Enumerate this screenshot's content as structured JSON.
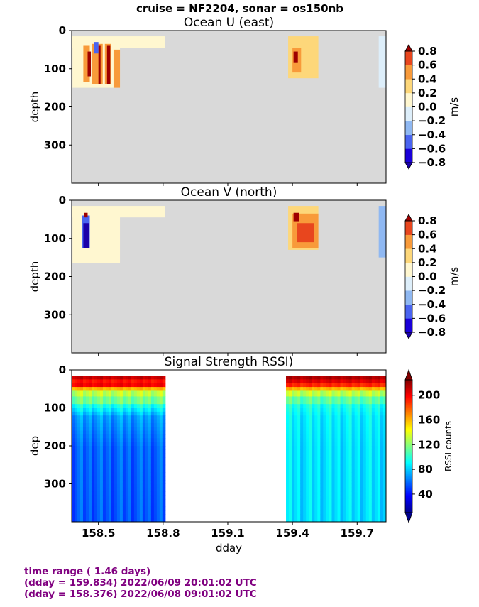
{
  "suptitle": "cruise = NF2204,  sonar = os150nb",
  "footer": {
    "line1": "time range ( 1.46 days)",
    "line2": "(dday = 159.834) 2022/06/09 20:01:02 UTC",
    "line3": "(dday = 158.376) 2022/06/08 09:01:02 UTC"
  },
  "chart_data": [
    {
      "type": "heatmap",
      "title": "Ocean U (east)",
      "xlabel": "",
      "ylabel": "depth",
      "xlim": [
        158.376,
        159.834
      ],
      "ylim": [
        400,
        0
      ],
      "xticks": [
        158.5,
        158.8,
        159.1,
        159.4,
        159.7
      ],
      "yticks": [
        0,
        100,
        200,
        300
      ],
      "ytick_labels": [
        "0",
        "100",
        "200",
        "300"
      ],
      "colorbar": {
        "label": "m/s",
        "ticks": [
          "0.8",
          "0.6",
          "0.4",
          "0.2",
          "0.0",
          "−0.2",
          "−0.4",
          "−0.6",
          "−0.8"
        ],
        "range": [
          -0.8,
          0.8
        ]
      },
      "background": "#d9d9d9",
      "segments": [
        {
          "x": [
            158.376,
            158.81
          ],
          "depth": [
            15,
            45
          ],
          "value": 0.05
        },
        {
          "x": [
            158.38,
            158.6
          ],
          "depth": [
            20,
            150
          ],
          "value": 0.15
        },
        {
          "x": [
            158.43,
            158.46
          ],
          "depth": [
            40,
            135
          ],
          "value": 0.55
        },
        {
          "x": [
            158.47,
            158.52
          ],
          "depth": [
            35,
            140
          ],
          "value": 0.5
        },
        {
          "x": [
            158.53,
            158.56
          ],
          "depth": [
            35,
            140
          ],
          "value": 0.6
        },
        {
          "x": [
            158.57,
            158.6
          ],
          "depth": [
            50,
            150
          ],
          "value": 0.45
        },
        {
          "x": [
            158.45,
            158.465
          ],
          "depth": [
            55,
            120
          ],
          "value": 0.8
        },
        {
          "x": [
            158.5,
            158.51
          ],
          "depth": [
            40,
            140
          ],
          "value": 0.8
        },
        {
          "x": [
            158.54,
            158.555
          ],
          "depth": [
            40,
            140
          ],
          "value": 0.8
        },
        {
          "x": [
            158.48,
            158.5
          ],
          "depth": [
            30,
            60
          ],
          "value": -0.5
        },
        {
          "x": [
            159.38,
            159.52
          ],
          "depth": [
            15,
            125
          ],
          "value": 0.3
        },
        {
          "x": [
            159.4,
            159.44
          ],
          "depth": [
            45,
            110
          ],
          "value": 0.5
        },
        {
          "x": [
            159.405,
            159.425
          ],
          "depth": [
            55,
            85
          ],
          "value": 0.8
        },
        {
          "x": [
            159.8,
            159.834
          ],
          "depth": [
            15,
            150
          ],
          "value": -0.1
        }
      ]
    },
    {
      "type": "heatmap",
      "title": "Ocean V (north)",
      "xlabel": "",
      "ylabel": "depth",
      "xlim": [
        158.376,
        159.834
      ],
      "ylim": [
        400,
        0
      ],
      "xticks": [
        158.5,
        158.8,
        159.1,
        159.4,
        159.7
      ],
      "yticks": [
        0,
        100,
        200,
        300
      ],
      "ytick_labels": [
        "0",
        "100",
        "200",
        "300"
      ],
      "colorbar": {
        "label": "m/s",
        "ticks": [
          "0.8",
          "0.6",
          "0.4",
          "0.2",
          "0.0",
          "−0.2",
          "−0.4",
          "−0.6",
          "−0.8"
        ],
        "range": [
          -0.8,
          0.8
        ]
      },
      "background": "#d9d9d9",
      "segments": [
        {
          "x": [
            158.376,
            158.81
          ],
          "depth": [
            15,
            45
          ],
          "value": 0.05
        },
        {
          "x": [
            158.38,
            158.6
          ],
          "depth": [
            20,
            165
          ],
          "value": 0.1
        },
        {
          "x": [
            158.425,
            158.46
          ],
          "depth": [
            40,
            125
          ],
          "value": -0.5
        },
        {
          "x": [
            158.43,
            158.455
          ],
          "depth": [
            60,
            125
          ],
          "value": -0.9
        },
        {
          "x": [
            158.435,
            158.45
          ],
          "depth": [
            33,
            45
          ],
          "value": 0.8
        },
        {
          "x": [
            159.38,
            159.52
          ],
          "depth": [
            15,
            130
          ],
          "value": 0.25
        },
        {
          "x": [
            159.4,
            159.52
          ],
          "depth": [
            35,
            125
          ],
          "value": 0.55
        },
        {
          "x": [
            159.42,
            159.5
          ],
          "depth": [
            60,
            110
          ],
          "value": 0.75
        },
        {
          "x": [
            159.405,
            159.43
          ],
          "depth": [
            33,
            55
          ],
          "value": 0.8
        },
        {
          "x": [
            159.8,
            159.834
          ],
          "depth": [
            15,
            150
          ],
          "value": -0.3
        }
      ]
    },
    {
      "type": "heatmap",
      "title": "Signal Strength RSSI)",
      "xlabel": "dday",
      "ylabel": "dep",
      "xlim": [
        158.376,
        159.834
      ],
      "ylim": [
        400,
        0
      ],
      "xticks": [
        158.5,
        158.8,
        159.1,
        159.4,
        159.7
      ],
      "xtick_labels": [
        "158.5",
        "158.8",
        "159.1",
        "159.4",
        "159.7"
      ],
      "yticks": [
        0,
        100,
        200,
        300
      ],
      "ytick_labels": [
        "0",
        "100",
        "200",
        "300"
      ],
      "colorbar": {
        "label": "RSSI counts",
        "ticks": [
          "200",
          "160",
          "120",
          "80",
          "40"
        ],
        "range": [
          10,
          225
        ]
      },
      "background": "#ffffff",
      "segments": [
        {
          "x": [
            158.376,
            158.81
          ],
          "depth": [
            15,
            400
          ],
          "profile": [
            [
              15,
              210
            ],
            [
              25,
              195
            ],
            [
              35,
              200
            ],
            [
              45,
              160
            ],
            [
              55,
              130
            ],
            [
              70,
              115
            ],
            [
              90,
              95
            ],
            [
              120,
              70
            ],
            [
              200,
              58
            ],
            [
              400,
              55
            ]
          ]
        },
        {
          "x": [
            159.37,
            159.834
          ],
          "depth": [
            15,
            400
          ],
          "profile": [
            [
              15,
              215
            ],
            [
              25,
              205
            ],
            [
              35,
              190
            ],
            [
              45,
              160
            ],
            [
              55,
              130
            ],
            [
              70,
              110
            ],
            [
              90,
              95
            ],
            [
              120,
              88
            ],
            [
              200,
              85
            ],
            [
              400,
              84
            ]
          ]
        }
      ]
    }
  ]
}
